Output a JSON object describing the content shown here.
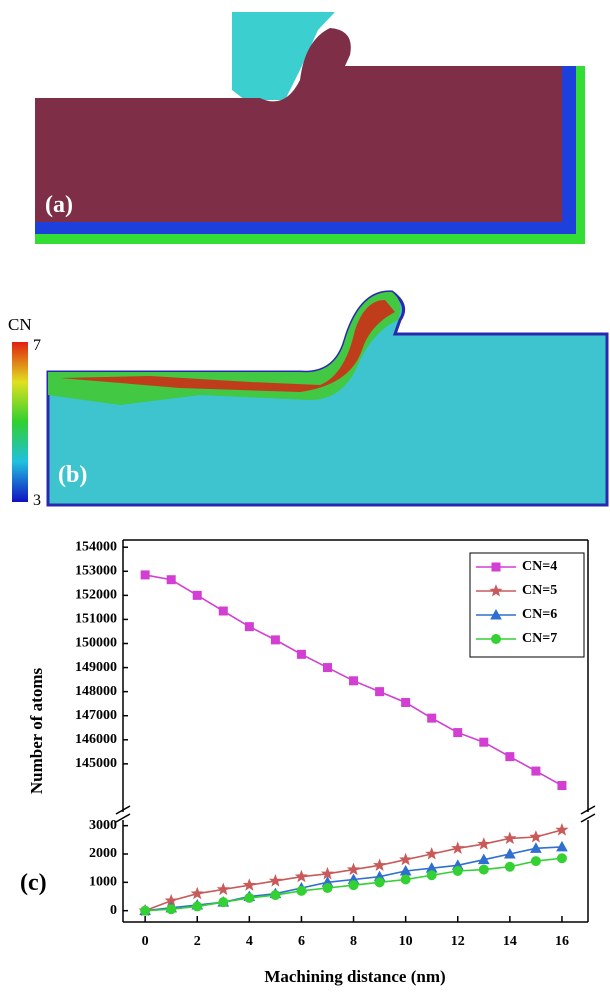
{
  "panels": [
    {
      "label": "(a)"
    },
    {
      "label": "(b)",
      "colorbar": {
        "title": "CN",
        "max": 7,
        "min": 3
      }
    }
  ],
  "chart_data": {
    "type": "line",
    "panel_label": "(c)",
    "x_label": "Machining distance (nm)",
    "y_label": "Number of atoms",
    "x": [
      0,
      1,
      2,
      3,
      4,
      5,
      6,
      7,
      8,
      9,
      10,
      11,
      12,
      13,
      14,
      15,
      16
    ],
    "xlim": [
      -0.85,
      17
    ],
    "xticks": [
      0,
      2,
      4,
      6,
      8,
      10,
      12,
      14,
      16
    ],
    "y_segments": [
      {
        "ylim": [
          -400,
          3200
        ],
        "yticks": [
          0,
          1000,
          2000,
          3000
        ]
      },
      {
        "ylim": [
          143000,
          154300
        ],
        "yticks": [
          145000,
          146000,
          147000,
          148000,
          149000,
          150000,
          151000,
          152000,
          153000,
          154000
        ]
      }
    ],
    "legend": "upper right",
    "series": [
      {
        "name": "CN=4",
        "color": "#d23fd2",
        "marker": "square",
        "segment": 1,
        "values": [
          152850,
          152650,
          152000,
          151350,
          150700,
          150150,
          149550,
          149000,
          148450,
          148000,
          147550,
          146900,
          146300,
          145900,
          145300,
          144700,
          144100
        ]
      },
      {
        "name": "CN=5",
        "color": "#c85a5a",
        "marker": "star",
        "segment": 0,
        "values": [
          0,
          350,
          600,
          750,
          900,
          1050,
          1200,
          1300,
          1450,
          1600,
          1800,
          2000,
          2200,
          2350,
          2550,
          2600,
          2850
        ]
      },
      {
        "name": "CN=6",
        "color": "#2f6fd0",
        "marker": "triangle",
        "segment": 0,
        "values": [
          0,
          100,
          200,
          300,
          500,
          600,
          800,
          1000,
          1100,
          1200,
          1400,
          1500,
          1600,
          1800,
          2000,
          2200,
          2250
        ]
      },
      {
        "name": "CN=7",
        "color": "#33d133",
        "marker": "circle",
        "segment": 0,
        "values": [
          0,
          50,
          150,
          300,
          450,
          550,
          700,
          800,
          900,
          1000,
          1100,
          1250,
          1400,
          1450,
          1550,
          1750,
          1850
        ]
      }
    ]
  }
}
